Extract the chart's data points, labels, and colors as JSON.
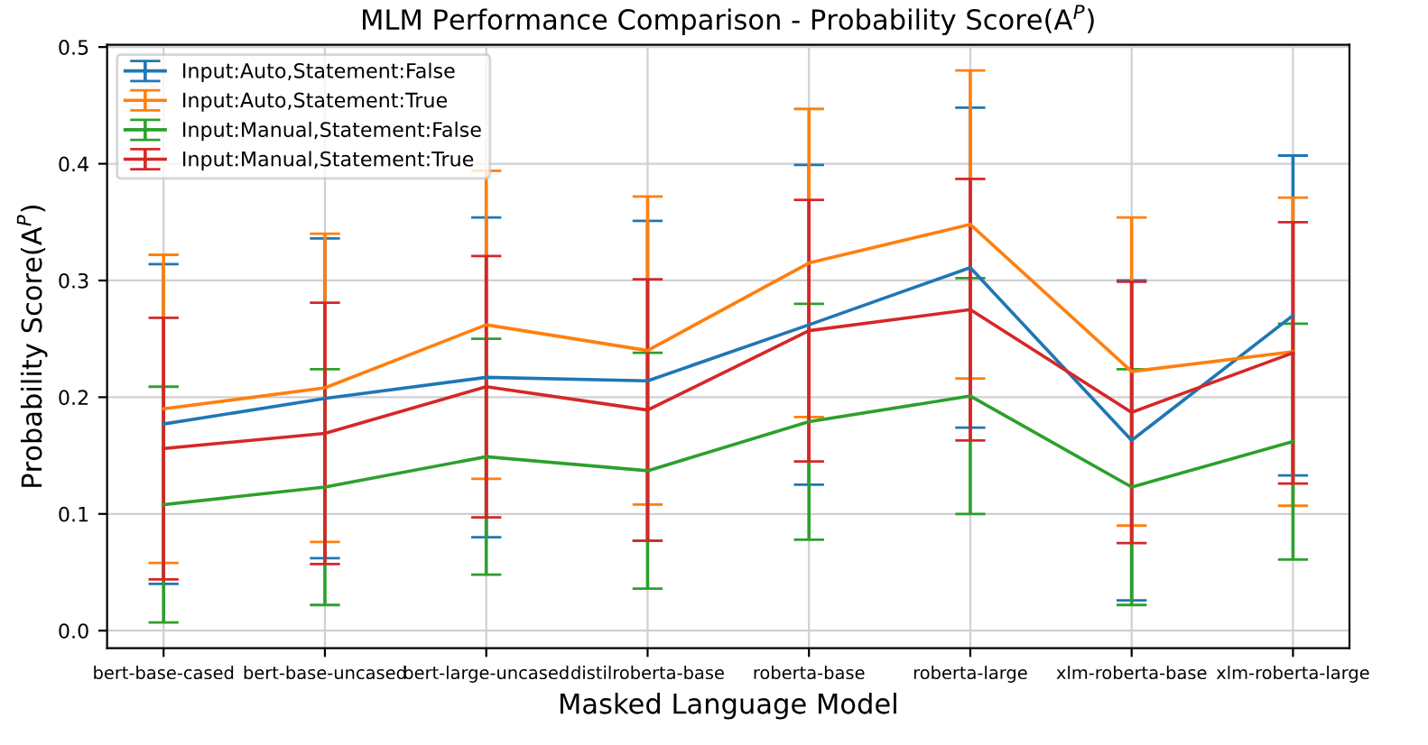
{
  "chart_data": {
    "type": "line",
    "title": "MLM Performance Comparison - Probability Score(A$^{P}$)",
    "xlabel": "Masked Language Model",
    "ylabel": "Probability Score(A$^{P}$)",
    "categories": [
      "bert-base-cased",
      "bert-base-uncased",
      "bert-large-uncased",
      "distilroberta-base",
      "roberta-base",
      "roberta-large",
      "xlm-roberta-base",
      "xlm-roberta-large"
    ],
    "series": [
      {
        "name": "Input:Auto,Statement:False",
        "color": "#1f77b4",
        "values": [
          0.177,
          0.199,
          0.217,
          0.214,
          0.262,
          0.311,
          0.163,
          0.27
        ],
        "errors": [
          0.137,
          0.137,
          0.137,
          0.137,
          0.137,
          0.137,
          0.137,
          0.137
        ]
      },
      {
        "name": "Input:Auto,Statement:True",
        "color": "#ff7f0e",
        "values": [
          0.19,
          0.208,
          0.262,
          0.24,
          0.315,
          0.348,
          0.222,
          0.239
        ],
        "errors": [
          0.132,
          0.132,
          0.132,
          0.132,
          0.132,
          0.132,
          0.132,
          0.132
        ]
      },
      {
        "name": "Input:Manual,Statement:False",
        "color": "#2ca02c",
        "values": [
          0.108,
          0.123,
          0.149,
          0.137,
          0.179,
          0.201,
          0.123,
          0.162
        ],
        "errors": [
          0.101,
          0.101,
          0.101,
          0.101,
          0.101,
          0.101,
          0.101,
          0.101
        ]
      },
      {
        "name": "Input:Manual,Statement:True",
        "color": "#d62728",
        "values": [
          0.156,
          0.169,
          0.209,
          0.189,
          0.257,
          0.275,
          0.187,
          0.238
        ],
        "errors": [
          0.112,
          0.112,
          0.112,
          0.112,
          0.112,
          0.112,
          0.112,
          0.112
        ]
      }
    ],
    "ylim": [
      -0.015,
      0.502
    ],
    "yticks": [
      {
        "value": 0.0,
        "label": "0.0"
      },
      {
        "value": 0.1,
        "label": "0.1"
      },
      {
        "value": 0.2,
        "label": "0.2"
      },
      {
        "value": 0.3,
        "label": "0.3"
      },
      {
        "value": 0.4,
        "label": "0.4"
      },
      {
        "value": 0.5,
        "label": "0.5"
      }
    ],
    "grid": true,
    "legend": "top left",
    "marker": "none",
    "line_style": "solid"
  }
}
